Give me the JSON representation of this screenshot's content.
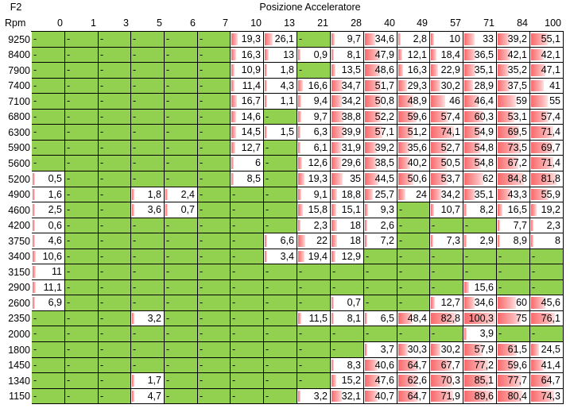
{
  "corner_label": "F2",
  "title": "Posizione Acceleratore",
  "rpm_label": "Rpm",
  "colors": {
    "filled": "#92d050",
    "empty": "#ffffff",
    "bar": "#f8696b"
  },
  "columns": [
    "0",
    "1",
    "3",
    "5",
    "6",
    "7",
    "10",
    "13",
    "21",
    "28",
    "40",
    "49",
    "57",
    "71",
    "84",
    "100"
  ],
  "rows": [
    {
      "rpm": "9250",
      "cells": [
        "-",
        "-",
        "-",
        "-",
        "-",
        "-",
        "19,3",
        "26,1",
        "-",
        "9,7",
        "34,6",
        "2,8",
        "10",
        "33",
        "39,2",
        "55,1"
      ]
    },
    {
      "rpm": "8400",
      "cells": [
        "-",
        "-",
        "-",
        "-",
        "-",
        "-",
        "16,3",
        "13",
        "0,9",
        "8,1",
        "47,9",
        "12,1",
        "18,4",
        "36,5",
        "42,1",
        "42,1"
      ]
    },
    {
      "rpm": "7900",
      "cells": [
        "-",
        "-",
        "-",
        "-",
        "-",
        "-",
        "10,9",
        "1,8",
        "-",
        "13,5",
        "48,6",
        "16,3",
        "22,9",
        "35,1",
        "35,2",
        "47,1"
      ]
    },
    {
      "rpm": "7400",
      "cells": [
        "-",
        "-",
        "-",
        "-",
        "-",
        "-",
        "11,4",
        "4,3",
        "16,6",
        "34,7",
        "51,7",
        "29,3",
        "30,2",
        "28,9",
        "37,5",
        "41"
      ]
    },
    {
      "rpm": "7100",
      "cells": [
        "-",
        "-",
        "-",
        "-",
        "-",
        "-",
        "16,7",
        "1,1",
        "9,4",
        "34,2",
        "50,8",
        "48,9",
        "46",
        "46,4",
        "59",
        "55"
      ]
    },
    {
      "rpm": "6800",
      "cells": [
        "-",
        "-",
        "-",
        "-",
        "-",
        "-",
        "14,6",
        "-",
        "9,7",
        "38,8",
        "52,2",
        "59,6",
        "57,4",
        "60,3",
        "53,1",
        "57,4"
      ]
    },
    {
      "rpm": "6300",
      "cells": [
        "-",
        "-",
        "-",
        "-",
        "-",
        "-",
        "14,5",
        "1,5",
        "6,3",
        "39,9",
        "57,1",
        "51,2",
        "74,1",
        "54,9",
        "69,5",
        "71,4"
      ]
    },
    {
      "rpm": "5900",
      "cells": [
        "-",
        "-",
        "-",
        "-",
        "-",
        "-",
        "12,7",
        "-",
        "6,1",
        "31,9",
        "39,2",
        "35,6",
        "52,7",
        "54,8",
        "73,5",
        "69,7"
      ]
    },
    {
      "rpm": "5600",
      "cells": [
        "-",
        "-",
        "-",
        "-",
        "-",
        "-",
        "6",
        "-",
        "12,6",
        "29,6",
        "38,5",
        "40,2",
        "50,5",
        "54,8",
        "67,2",
        "71,4"
      ]
    },
    {
      "rpm": "5200",
      "cells": [
        "0,5",
        "-",
        "-",
        "-",
        "-",
        "-",
        "8,5",
        "-",
        "19,3",
        "35",
        "44,5",
        "50,6",
        "53,7",
        "62",
        "84,8",
        "81,8"
      ]
    },
    {
      "rpm": "4900",
      "cells": [
        "1,6",
        "-",
        "-",
        "1,8",
        "2,4",
        "-",
        "-",
        "-",
        "9,1",
        "18,8",
        "25,7",
        "24",
        "34,2",
        "35,1",
        "43,3",
        "55,9"
      ]
    },
    {
      "rpm": "4600",
      "cells": [
        "2,5",
        "-",
        "-",
        "3,6",
        "0,7",
        "-",
        "-",
        "-",
        "15,8",
        "15,1",
        "9,3",
        "-",
        "10,7",
        "8,2",
        "16,5",
        "19,2"
      ]
    },
    {
      "rpm": "4200",
      "cells": [
        "0,6",
        "-",
        "-",
        "-",
        "-",
        "-",
        "-",
        "-",
        "2,3",
        "18",
        "2,6",
        "-",
        "-",
        "-",
        "7,7",
        "2,3"
      ]
    },
    {
      "rpm": "3750",
      "cells": [
        "4,6",
        "-",
        "-",
        "-",
        "-",
        "-",
        "-",
        "6,6",
        "22",
        "18",
        "7,2",
        "-",
        "7,3",
        "2,9",
        "8,9",
        "8"
      ]
    },
    {
      "rpm": "3400",
      "cells": [
        "10,6",
        "-",
        "-",
        "-",
        "-",
        "-",
        "-",
        "3,4",
        "19,4",
        "12,9",
        "-",
        "-",
        "-",
        "-",
        "-",
        "-"
      ]
    },
    {
      "rpm": "3150",
      "cells": [
        "11",
        "-",
        "-",
        "-",
        "-",
        "-",
        "-",
        "-",
        "-",
        "-",
        "-",
        "-",
        "-",
        "-",
        "-",
        "-"
      ]
    },
    {
      "rpm": "2900",
      "cells": [
        "11,1",
        "-",
        "-",
        "-",
        "-",
        "-",
        "-",
        "-",
        "-",
        "-",
        "-",
        "-",
        "-",
        "15,6",
        "-",
        "-"
      ]
    },
    {
      "rpm": "2600",
      "cells": [
        "6,9",
        "-",
        "-",
        "-",
        "-",
        "-",
        "-",
        "-",
        "-",
        "0,7",
        "-",
        "-",
        "12,7",
        "34,6",
        "60",
        "45,6"
      ]
    },
    {
      "rpm": "2350",
      "cells": [
        "-",
        "-",
        "-",
        "3,2",
        "-",
        "-",
        "-",
        "-",
        "11,5",
        "8,1",
        "6,5",
        "48,4",
        "82,8",
        "100,3",
        "75",
        "76,1"
      ]
    },
    {
      "rpm": "2000",
      "cells": [
        "-",
        "-",
        "-",
        "-",
        "-",
        "-",
        "-",
        "-",
        "-",
        "-",
        "-",
        "-",
        "-",
        "3,9",
        "-",
        "-"
      ]
    },
    {
      "rpm": "1800",
      "cells": [
        "-",
        "-",
        "-",
        "-",
        "-",
        "-",
        "-",
        "-",
        "-",
        "-",
        "3,7",
        "30,3",
        "30,2",
        "57,9",
        "61,5",
        "24,5"
      ]
    },
    {
      "rpm": "1450",
      "cells": [
        "-",
        "-",
        "-",
        "-",
        "-",
        "-",
        "-",
        "-",
        "-",
        "8,3",
        "40,6",
        "64,7",
        "67,7",
        "77,2",
        "59,6",
        "41,4"
      ]
    },
    {
      "rpm": "1340",
      "cells": [
        "-",
        "-",
        "-",
        "1,7",
        "-",
        "-",
        "-",
        "-",
        "-",
        "15,2",
        "47,6",
        "62,6",
        "70,3",
        "85,1",
        "77,7",
        "64,7"
      ]
    },
    {
      "rpm": "1150",
      "cells": [
        "-",
        "-",
        "-",
        "4,7",
        "-",
        "-",
        "-",
        "-",
        "3,2",
        "32,1",
        "40,7",
        "64,7",
        "71,9",
        "89,6",
        "80,4",
        "74,3"
      ]
    }
  ]
}
